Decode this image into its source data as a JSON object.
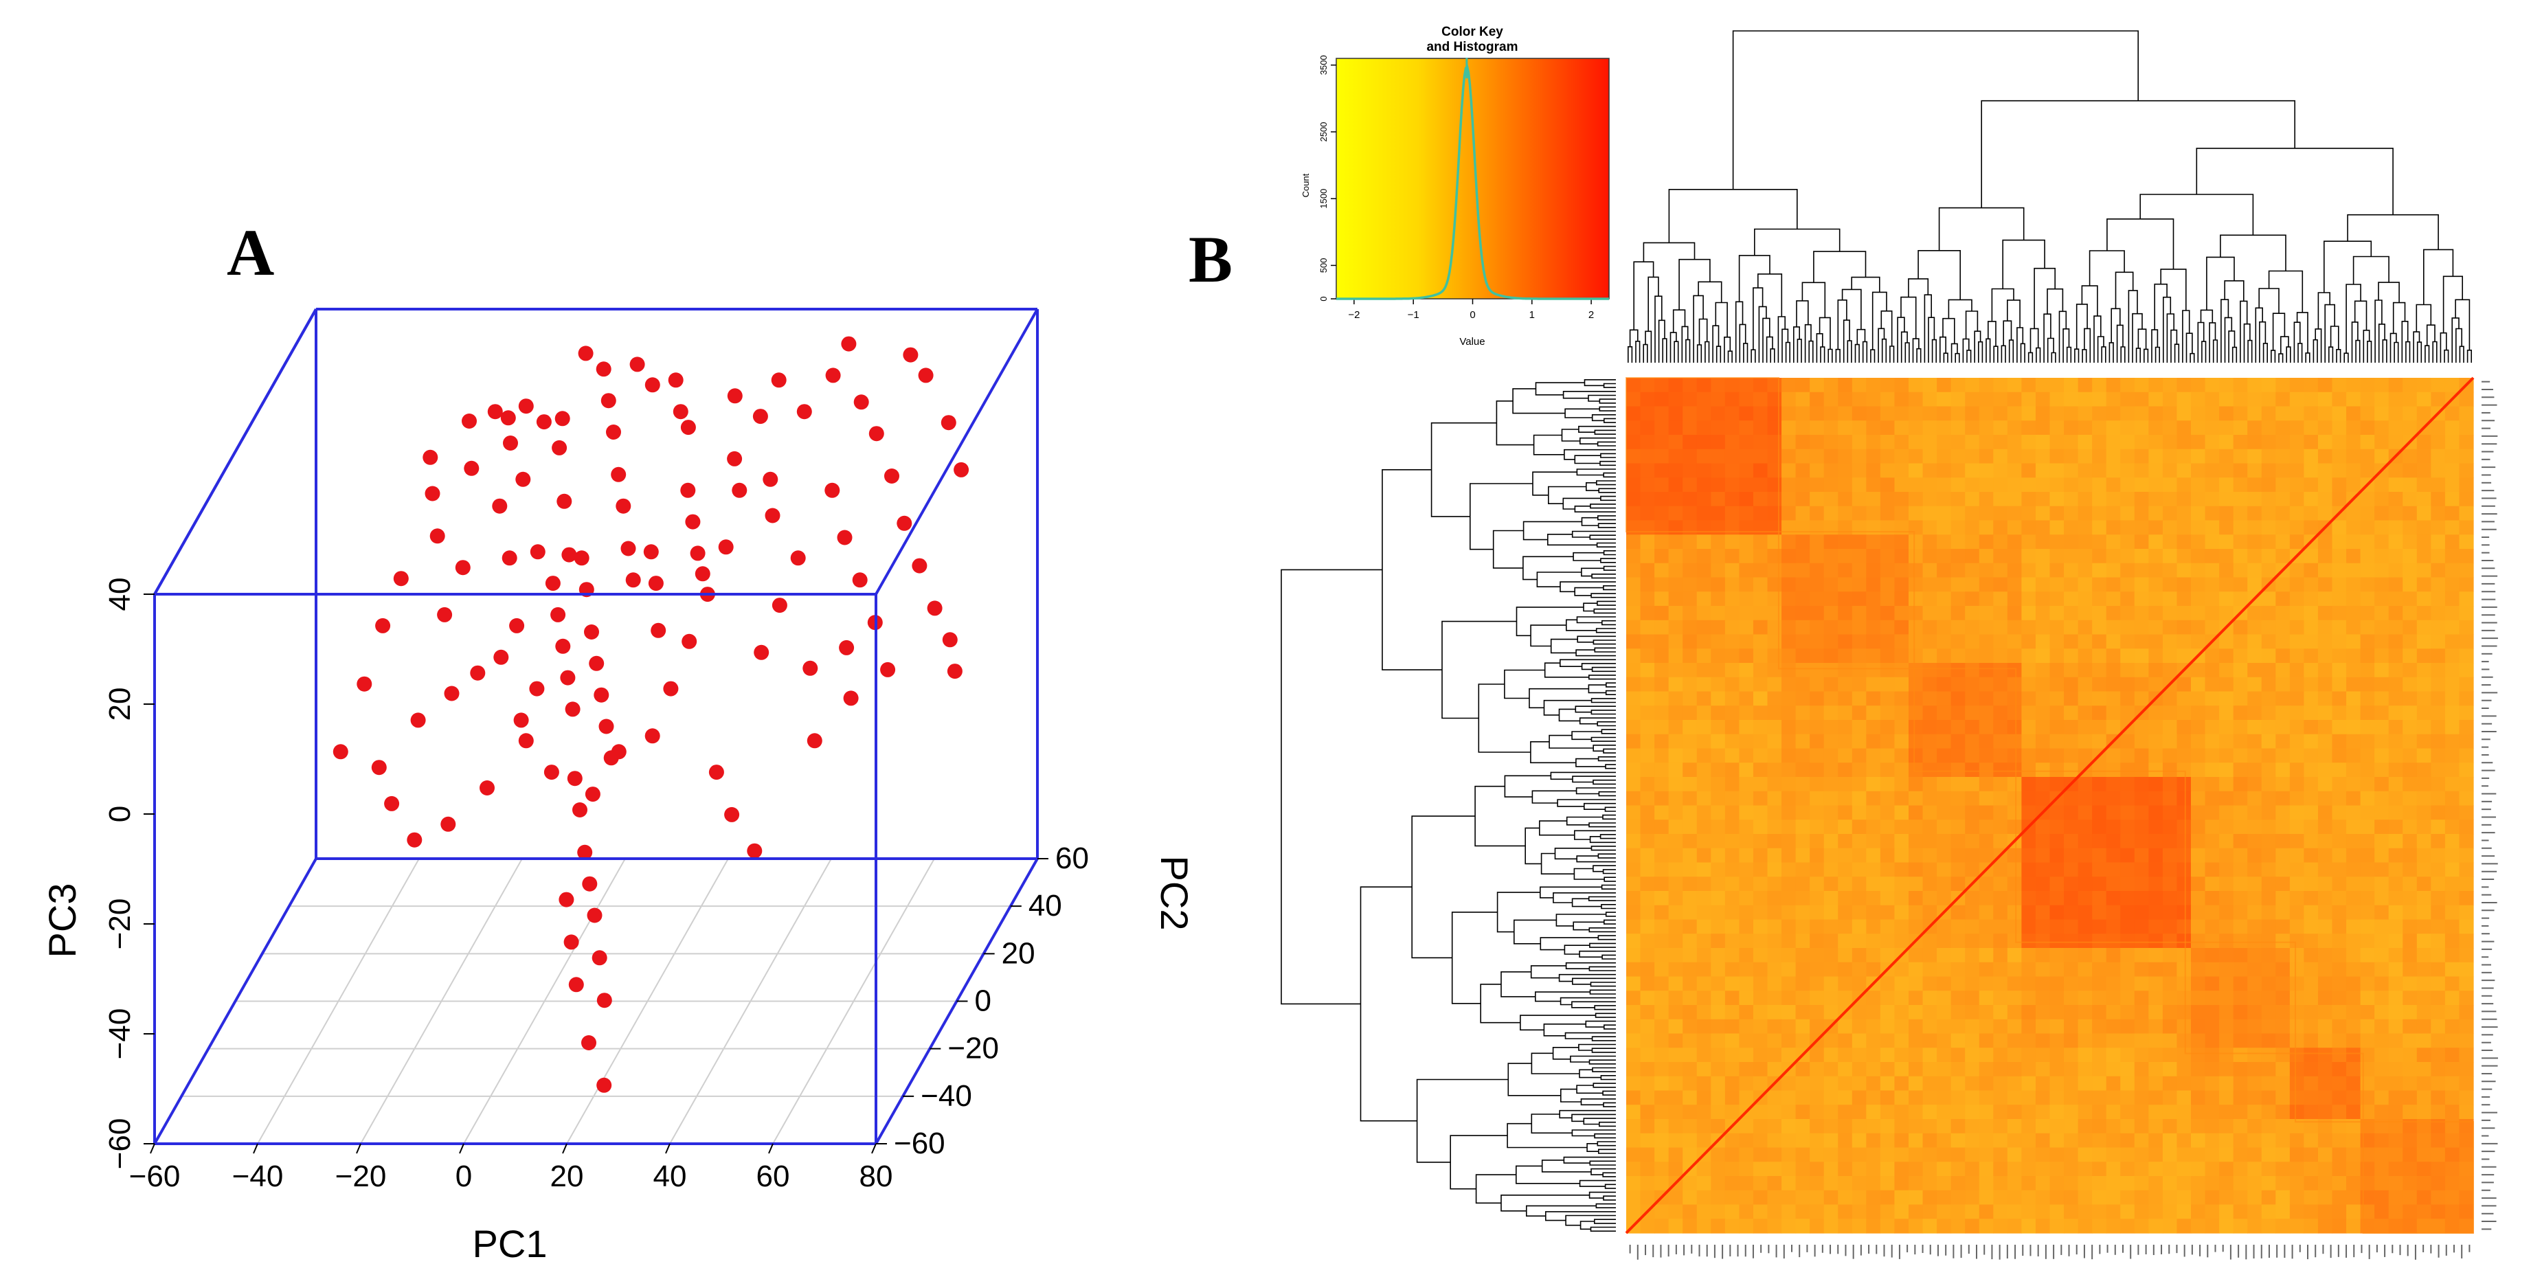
{
  "figure": {
    "panel_a_label": "A",
    "panel_b_label": "B"
  },
  "chart_data": [
    {
      "type": "scatter",
      "subtype": "3d-scatter",
      "panel": "A",
      "xlabel": "PC1",
      "ylabel": "PC2",
      "zlabel": "PC3",
      "xlim": [
        -60,
        80
      ],
      "ylim": [
        -60,
        60
      ],
      "zlim": [
        -60,
        40
      ],
      "xticks": [
        -60,
        -40,
        -20,
        0,
        20,
        40,
        60,
        80
      ],
      "yticks": [
        -60,
        -40,
        -20,
        0,
        20,
        40,
        60
      ],
      "zticks": [
        -60,
        -40,
        -20,
        0,
        20,
        40
      ],
      "xtick_labels": [
        "−60",
        "−40",
        "−20",
        "0",
        "20",
        "40",
        "60",
        "80"
      ],
      "ytick_labels": [
        "−60",
        "−40",
        "−20",
        "0",
        "20",
        "40",
        "60"
      ],
      "ztick_labels": [
        "−60",
        "−40",
        "−20",
        "0",
        "20",
        "40"
      ],
      "marker_color": "#e8141a",
      "box_color": "#2b2bdf",
      "points": [
        [
          -20,
          40,
          30
        ],
        [
          -18,
          42,
          28
        ],
        [
          -14,
          40,
          31
        ],
        [
          -10,
          38,
          29
        ],
        [
          -8,
          44,
          27
        ],
        [
          -22,
          30,
          24
        ],
        [
          -16,
          28,
          18
        ],
        [
          -12,
          20,
          12
        ],
        [
          -6,
          34,
          26
        ],
        [
          -4,
          30,
          18
        ],
        [
          -2,
          26,
          10
        ],
        [
          0,
          44,
          36
        ],
        [
          2,
          40,
          32
        ],
        [
          4,
          36,
          28
        ],
        [
          6,
          32,
          22
        ],
        [
          8,
          28,
          18
        ],
        [
          10,
          24,
          12
        ],
        [
          12,
          20,
          8
        ],
        [
          14,
          44,
          34
        ],
        [
          16,
          40,
          30
        ],
        [
          18,
          38,
          28
        ],
        [
          2,
          20,
          12
        ],
        [
          4,
          16,
          8
        ],
        [
          6,
          12,
          2
        ],
        [
          8,
          8,
          -2
        ],
        [
          10,
          4,
          -6
        ],
        [
          12,
          0,
          -10
        ],
        [
          14,
          -4,
          -14
        ],
        [
          0,
          10,
          6
        ],
        [
          -2,
          14,
          10
        ],
        [
          -6,
          18,
          14
        ],
        [
          -8,
          10,
          4
        ],
        [
          -10,
          6,
          0
        ],
        [
          -14,
          4,
          -2
        ],
        [
          -18,
          0,
          -4
        ],
        [
          -24,
          -2,
          -8
        ],
        [
          -22,
          10,
          6
        ],
        [
          -20,
          16,
          12
        ],
        [
          -26,
          20,
          16
        ],
        [
          -28,
          24,
          22
        ],
        [
          -30,
          30,
          26
        ],
        [
          20,
          30,
          20
        ],
        [
          22,
          26,
          16
        ],
        [
          24,
          22,
          12
        ],
        [
          26,
          18,
          10
        ],
        [
          28,
          34,
          24
        ],
        [
          30,
          30,
          20
        ],
        [
          8,
          -8,
          -16
        ],
        [
          10,
          -12,
          -20
        ],
        [
          12,
          -16,
          -26
        ],
        [
          14,
          -20,
          -30
        ],
        [
          16,
          -24,
          -34
        ],
        [
          18,
          -28,
          -40
        ],
        [
          20,
          -32,
          -46
        ],
        [
          18,
          -36,
          -52
        ],
        [
          22,
          -40,
          -58
        ],
        [
          14,
          -30,
          -44
        ],
        [
          12,
          -26,
          -38
        ],
        [
          10,
          -22,
          -32
        ],
        [
          12,
          -10,
          -18
        ],
        [
          16,
          -6,
          -12
        ],
        [
          6,
          -2,
          -6
        ],
        [
          4,
          2,
          -2
        ],
        [
          2,
          6,
          2
        ],
        [
          -2,
          2,
          -4
        ],
        [
          -4,
          -2,
          -8
        ],
        [
          40,
          40,
          30
        ],
        [
          44,
          46,
          34
        ],
        [
          46,
          50,
          38
        ],
        [
          50,
          44,
          30
        ],
        [
          54,
          40,
          26
        ],
        [
          58,
          36,
          20
        ],
        [
          62,
          30,
          14
        ],
        [
          66,
          26,
          8
        ],
        [
          70,
          22,
          2
        ],
        [
          74,
          18,
          -2
        ],
        [
          76,
          14,
          -6
        ],
        [
          48,
          30,
          20
        ],
        [
          52,
          24,
          14
        ],
        [
          56,
          20,
          8
        ],
        [
          60,
          16,
          2
        ],
        [
          64,
          10,
          -4
        ],
        [
          44,
          20,
          12
        ],
        [
          42,
          14,
          6
        ],
        [
          40,
          8,
          0
        ],
        [
          36,
          30,
          22
        ],
        [
          32,
          38,
          30
        ],
        [
          34,
          44,
          34
        ],
        [
          30,
          20,
          14
        ],
        [
          28,
          14,
          8
        ],
        [
          26,
          8,
          2
        ],
        [
          24,
          2,
          -4
        ],
        [
          22,
          -4,
          -10
        ],
        [
          36,
          -10,
          -14
        ],
        [
          40,
          -14,
          -20
        ],
        [
          46,
          -20,
          -24
        ],
        [
          54,
          -6,
          -10
        ],
        [
          60,
          -2,
          -4
        ],
        [
          -32,
          16,
          10
        ],
        [
          -34,
          10,
          4
        ],
        [
          -36,
          4,
          -4
        ],
        [
          -38,
          -6,
          -12
        ],
        [
          -30,
          -8,
          -14
        ],
        [
          -26,
          -14,
          -18
        ],
        [
          -20,
          -20,
          -22
        ],
        [
          -14,
          -18,
          -20
        ],
        [
          -8,
          -12,
          -16
        ],
        [
          -2,
          -6,
          -10
        ],
        [
          4,
          -10,
          -14
        ],
        [
          20,
          8,
          4
        ],
        [
          18,
          14,
          10
        ],
        [
          16,
          18,
          14
        ],
        [
          -12,
          30,
          22
        ],
        [
          -16,
          36,
          26
        ],
        [
          -24,
          36,
          30
        ],
        [
          6,
          46,
          36
        ],
        [
          10,
          42,
          34
        ],
        [
          -4,
          46,
          38
        ],
        [
          26,
          42,
          32
        ],
        [
          38,
          24,
          18
        ],
        [
          58,
          50,
          36
        ],
        [
          62,
          46,
          34
        ],
        [
          68,
          40,
          28
        ],
        [
          72,
          34,
          22
        ],
        [
          56,
          10,
          0
        ],
        [
          50,
          6,
          -2
        ]
      ]
    },
    {
      "type": "heatmap",
      "panel": "B",
      "color_key_title": "Color Key",
      "color_key_subtitle": "and Histogram",
      "color_key_ylabel": "Count",
      "color_key_xlabel": "Value",
      "color_key_xticks": [
        -2,
        -1,
        0,
        1,
        2
      ],
      "color_key_xtick_labels": [
        "−2",
        "−1",
        "0",
        "1",
        "2"
      ],
      "color_key_yticks": [
        0,
        500,
        1500,
        2500,
        3500
      ],
      "color_key_yrange": [
        0,
        3600
      ],
      "color_scale": [
        "#ffff00",
        "#ffd000",
        "#ffa000",
        "#ff5000",
        "#ff0000"
      ],
      "histogram_color": "#40c0a0",
      "histogram_peak_value": -0.1,
      "histogram_peak_count": 3300,
      "diagonal_color": "#ff2a00",
      "blocks": [
        {
          "start": 0,
          "end": 0.18,
          "intensity": 0.62
        },
        {
          "start": 0.18,
          "end": 0.34,
          "intensity": 0.46
        },
        {
          "start": 0.34,
          "end": 0.46,
          "intensity": 0.5
        },
        {
          "start": 0.46,
          "end": 0.66,
          "intensity": 0.62
        },
        {
          "start": 0.66,
          "end": 0.79,
          "intensity": 0.44
        },
        {
          "start": 0.79,
          "end": 0.87,
          "intensity": 0.52
        },
        {
          "start": 0.87,
          "end": 1.0,
          "intensity": 0.46
        }
      ],
      "dendrogram_leaves": 220
    }
  ]
}
